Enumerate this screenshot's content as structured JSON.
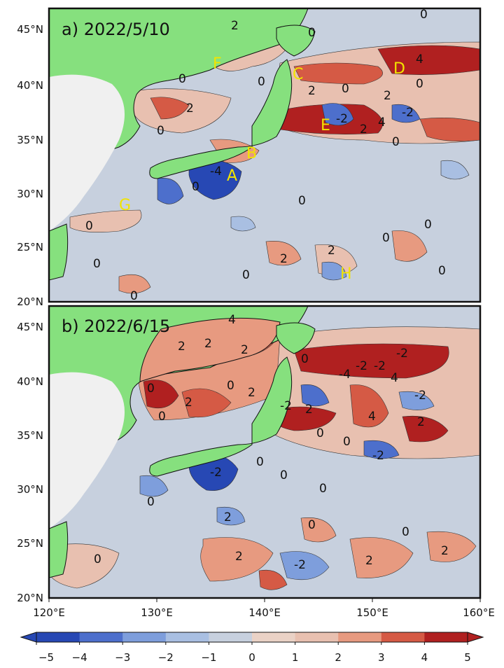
{
  "colors": {
    "ocean_base": "#c7d0de",
    "land": "#86e07e",
    "china_land": "#f0f0f0",
    "warm": [
      "#e8c0b0",
      "#e79a80",
      "#d55a45",
      "#b02020"
    ],
    "cool": [
      "#a9bfe2",
      "#7e9edc",
      "#4d6fcc",
      "#2748b4"
    ],
    "marker": "#f2e400"
  },
  "panels": [
    {
      "title": "a) 2022/5/10",
      "markers": [
        {
          "id": "A",
          "label": "A"
        },
        {
          "id": "B",
          "label": "B"
        },
        {
          "id": "C",
          "label": "C"
        },
        {
          "id": "D",
          "label": "D"
        },
        {
          "id": "E",
          "label": "E"
        },
        {
          "id": "F",
          "label": "F"
        },
        {
          "id": "G",
          "label": "G"
        },
        {
          "id": "H",
          "label": "H"
        }
      ],
      "contour_labels": [
        "2",
        "0",
        "0",
        "0",
        "-4",
        "0",
        "-2",
        "2",
        "4",
        "2",
        "0",
        "2",
        "0",
        "2",
        "0",
        "4",
        "-2",
        "0",
        "0",
        "0",
        "0",
        "0",
        "2",
        "0",
        "2",
        "0",
        "0",
        "0",
        "0"
      ]
    },
    {
      "title": "b) 2022/6/15",
      "contour_labels": [
        "4",
        "2",
        "2",
        "2",
        "0",
        "2",
        "0",
        "2",
        "0",
        "-2",
        "0",
        "-2",
        "-2",
        "4",
        "-4",
        "-2",
        "2",
        "4",
        "-2",
        "0",
        "0",
        "0",
        "-2",
        "0",
        "-2",
        "2",
        "0",
        "0",
        "2",
        "0",
        "-2",
        "0",
        "2",
        "2",
        "0",
        "2"
      ]
    }
  ],
  "axes": {
    "y_labels": [
      "45°N",
      "40°N",
      "35°N",
      "30°N",
      "25°N",
      "20°N"
    ],
    "x_labels": [
      "120°E",
      "130°E",
      "140°E",
      "150°E",
      "160°E"
    ]
  },
  "colorbar": {
    "ticks": [
      "−5",
      "−4",
      "−3",
      "−2",
      "−1",
      "0",
      "1",
      "2",
      "3",
      "4",
      "5"
    ],
    "colors": [
      "#2748b4",
      "#4d6fcc",
      "#7e9edc",
      "#a9bfe2",
      "#c7d0de",
      "#ead2c6",
      "#e8c0b0",
      "#e79a80",
      "#d55a45",
      "#b02020"
    ]
  }
}
